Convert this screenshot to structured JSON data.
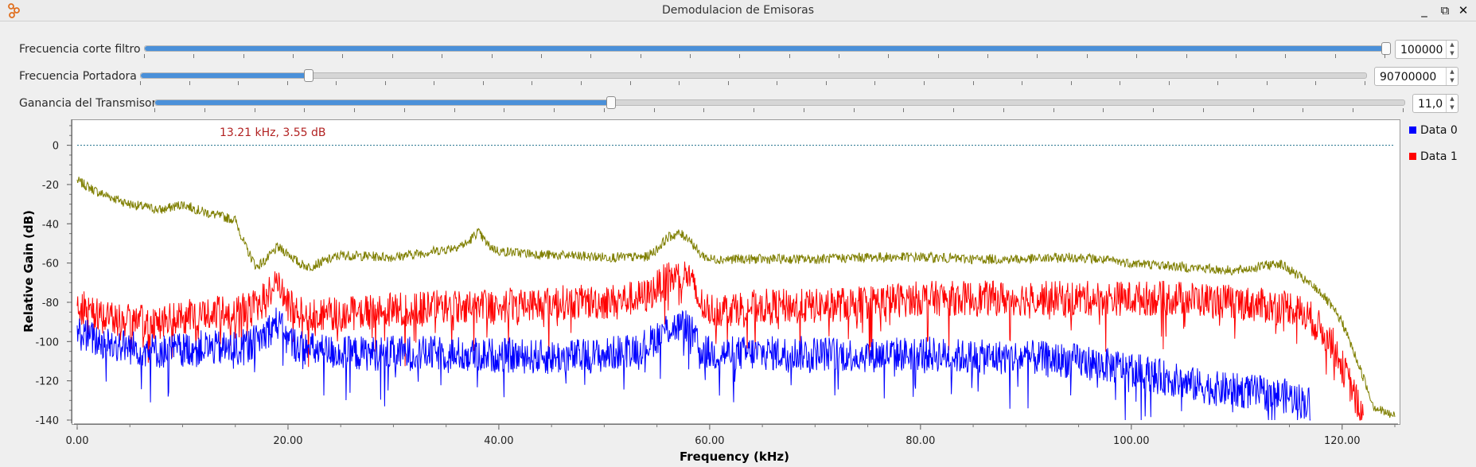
{
  "window": {
    "title": "Demodulacion de Emisoras",
    "minimize_glyph": "_",
    "maximize_glyph": "⧉",
    "close_glyph": "✕",
    "icon": "gnuradio-logo-icon"
  },
  "controls": [
    {
      "label": "Frecuencia corte filtro",
      "value": "100000",
      "level": 1.0
    },
    {
      "label": "Frecuencia Portadora",
      "value": "90700000",
      "level": 0.137
    },
    {
      "label": "Ganancia del Transmisor",
      "value": "11,0",
      "level": 0.365
    }
  ],
  "spin": {
    "up": "▲",
    "down": "▼"
  },
  "chart_data": {
    "type": "line",
    "xlabel": "Frequency (kHz)",
    "ylabel": "Relative Gain (dB)",
    "xlim": [
      0,
      125
    ],
    "ylim": [
      -140,
      12
    ],
    "x_ticks": [
      "0.00",
      "20.00",
      "40.00",
      "60.00",
      "80.00",
      "100.00",
      "120.00"
    ],
    "x_tick_values": [
      0,
      20,
      40,
      60,
      80,
      100,
      120
    ],
    "y_ticks": [
      "0",
      "-20",
      "-40",
      "-60",
      "-80",
      "-100",
      "-120",
      "-140"
    ],
    "y_tick_values": [
      0,
      -20,
      -40,
      -60,
      -80,
      -100,
      -120,
      -140
    ],
    "marker_text": "13.21 kHz, 3.55 dB",
    "reference_line_db": 0,
    "legend": {
      "placement": "right",
      "entries": [
        "Data 0",
        "Data 1"
      ]
    },
    "colors": {
      "data0": "#0000ff",
      "data1": "#ff0000",
      "max_hold": "#7f7f00",
      "marker": "#b22222",
      "reference": "#1f6f8b"
    },
    "series": [
      {
        "name": "Data 0",
        "color": "#0000ff",
        "x": [
          0,
          2,
          5,
          8,
          12,
          15,
          17,
          18,
          19,
          20,
          22,
          25,
          30,
          35,
          40,
          45,
          50,
          54,
          56,
          58,
          59,
          60,
          65,
          70,
          75,
          80,
          85,
          90,
          95,
          100,
          105,
          108,
          112,
          115,
          117
        ],
        "y": [
          -95,
          -100,
          -103,
          -105,
          -103,
          -104,
          -100,
          -95,
          -90,
          -100,
          -104,
          -106,
          -106,
          -106,
          -107,
          -108,
          -107,
          -102,
          -93,
          -92,
          -104,
          -106,
          -106,
          -106,
          -107,
          -106,
          -108,
          -108,
          -110,
          -114,
          -121,
          -124,
          -126,
          -128,
          -132
        ]
      },
      {
        "name": "Data 1",
        "color": "#ff0000",
        "x": [
          0,
          2,
          5,
          8,
          12,
          15,
          17,
          18,
          19,
          20,
          22,
          25,
          30,
          35,
          40,
          45,
          50,
          54,
          56,
          58,
          59,
          60,
          65,
          70,
          75,
          80,
          85,
          90,
          95,
          100,
          105,
          110,
          113,
          115,
          117,
          119,
          121,
          122
        ],
        "y": [
          -82,
          -86,
          -90,
          -90,
          -86,
          -85,
          -82,
          -77,
          -68,
          -82,
          -86,
          -86,
          -84,
          -82,
          -82,
          -80,
          -80,
          -77,
          -68,
          -66,
          -80,
          -84,
          -82,
          -82,
          -80,
          -78,
          -78,
          -78,
          -78,
          -78,
          -78,
          -80,
          -82,
          -82,
          -88,
          -100,
          -125,
          -140
        ]
      },
      {
        "name": "",
        "color": "#7f7f00",
        "x": [
          0,
          2,
          5,
          8,
          10,
          12,
          15,
          16,
          17,
          18,
          19,
          20,
          21,
          22,
          25,
          30,
          35,
          37,
          38,
          39,
          40,
          45,
          50,
          54,
          55,
          56,
          57,
          58,
          59,
          60,
          65,
          70,
          75,
          80,
          85,
          90,
          95,
          100,
          105,
          110,
          114,
          116,
          118,
          120,
          122,
          123,
          124,
          125
        ],
        "y": [
          -18,
          -24,
          -30,
          -33,
          -30,
          -34,
          -38,
          -52,
          -62,
          -58,
          -52,
          -55,
          -60,
          -62,
          -56,
          -57,
          -53,
          -50,
          -44,
          -51,
          -54,
          -56,
          -57,
          -57,
          -53,
          -47,
          -45,
          -47,
          -55,
          -58,
          -58,
          -58,
          -57,
          -57,
          -58,
          -58,
          -57,
          -60,
          -62,
          -64,
          -60,
          -67,
          -75,
          -90,
          -118,
          -133,
          -136,
          -138
        ]
      }
    ]
  }
}
